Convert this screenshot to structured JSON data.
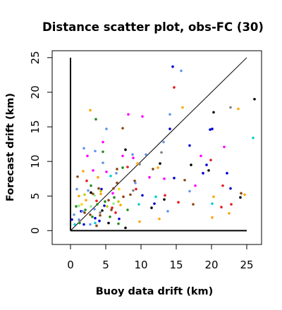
{
  "chart_data": {
    "type": "scatter",
    "title": "Distance scatter plot, obs-FC (30)",
    "xlabel": "Buoy data drift (km)",
    "ylabel": "Forecast drift (km)",
    "xlim": [
      -2.6,
      27.1
    ],
    "ylim": [
      -2.0,
      26.0
    ],
    "xticks": [
      0,
      5,
      10,
      15,
      20,
      25
    ],
    "yticks": [
      0,
      5,
      10,
      15,
      20,
      25
    ],
    "grid": false,
    "legend": "none",
    "reference_lines": [
      {
        "type": "identity",
        "from": [
          0,
          0
        ],
        "to": [
          25,
          25
        ],
        "color": "#000000"
      },
      {
        "type": "y-axis-bar",
        "from": [
          0,
          0
        ],
        "to": [
          0,
          25
        ],
        "color": "#000000"
      },
      {
        "type": "x-axis-bar",
        "from": [
          0,
          0
        ],
        "to": [
          25,
          0
        ],
        "color": "#000000"
      }
    ],
    "series": [
      {
        "color": "#0000cd",
        "points": [
          [
            14.5,
            23.7
          ],
          [
            14.1,
            14.7
          ],
          [
            20.1,
            14.7
          ],
          [
            19.8,
            14.6
          ],
          [
            19.3,
            9.5
          ],
          [
            22.2,
            8.3
          ],
          [
            16.9,
            12.3
          ],
          [
            14.7,
            7.6
          ],
          [
            11.9,
            3.9
          ],
          [
            3.5,
            1.8
          ],
          [
            1.5,
            2.8
          ],
          [
            4.8,
            3.6
          ],
          [
            6.9,
            1.7
          ],
          [
            1.9,
            0.9
          ],
          [
            0.2,
            1.6
          ],
          [
            10.2,
            5.1
          ],
          [
            4.4,
            6.0
          ],
          [
            22.7,
            6.1
          ],
          [
            4.1,
            1.4
          ],
          [
            18.8,
            8.3
          ]
        ]
      },
      {
        "color": "#000000",
        "points": [
          [
            26.1,
            19.0
          ],
          [
            20.3,
            17.1
          ],
          [
            7.8,
            11.7
          ],
          [
            12.7,
            9.7
          ],
          [
            17.1,
            9.5
          ],
          [
            24.1,
            4.8
          ],
          [
            11.5,
            3.3
          ],
          [
            4.5,
            2.9
          ],
          [
            7.8,
            0.4
          ],
          [
            13.3,
            4.5
          ],
          [
            19.6,
            8.7
          ],
          [
            2.9,
            5.5
          ],
          [
            5.4,
            1.1
          ]
        ]
      },
      {
        "color": "#e41a1c",
        "points": [
          [
            14.7,
            20.7
          ],
          [
            13.4,
            5.1
          ],
          [
            21.6,
            6.5
          ],
          [
            21.4,
            3.4
          ],
          [
            2.3,
            7.2
          ],
          [
            3.7,
            4.3
          ],
          [
            6.4,
            2.6
          ],
          [
            19.9,
            10.2
          ],
          [
            9.3,
            6.0
          ],
          [
            22.8,
            3.8
          ],
          [
            5.9,
            3.3
          ],
          [
            8.1,
            9.2
          ],
          [
            15.3,
            4.1
          ]
        ]
      },
      {
        "color": "#ff00ff",
        "points": [
          [
            8.2,
            16.8
          ],
          [
            10.2,
            16.5
          ],
          [
            4.6,
            12.8
          ],
          [
            7.4,
            10.8
          ],
          [
            2.4,
            10.8
          ],
          [
            5.1,
            8.5
          ],
          [
            8.9,
            10.5
          ],
          [
            18.5,
            10.8
          ],
          [
            11.2,
            7.7
          ],
          [
            13.3,
            7.5
          ],
          [
            21.8,
            12.1
          ],
          [
            6.0,
            5.4
          ],
          [
            17.7,
            6.5
          ],
          [
            3.2,
            8.7
          ]
        ]
      },
      {
        "color": "#ffa500",
        "points": [
          [
            2.8,
            17.4
          ],
          [
            15.9,
            17.8
          ],
          [
            23.8,
            17.6
          ],
          [
            9.5,
            9.7
          ],
          [
            12.4,
            9.1
          ],
          [
            1.8,
            8.6
          ],
          [
            4.3,
            5.3
          ],
          [
            20.3,
            4.9
          ],
          [
            20.1,
            1.9
          ],
          [
            9.8,
            1.3
          ],
          [
            12.6,
            1.7
          ],
          [
            24.7,
            5.2
          ],
          [
            22.5,
            2.5
          ],
          [
            2.2,
            4.4
          ],
          [
            7.1,
            3.7
          ],
          [
            3.9,
            7.7
          ],
          [
            1.2,
            5.0
          ]
        ]
      },
      {
        "color": "#6495ed",
        "points": [
          [
            15.7,
            23.1
          ],
          [
            14.1,
            16.8
          ],
          [
            5.1,
            14.7
          ],
          [
            3.5,
            11.5
          ],
          [
            8.8,
            11.0
          ],
          [
            10.7,
            11.0
          ],
          [
            13.2,
            12.8
          ],
          [
            1.9,
            11.9
          ],
          [
            4.6,
            9.8
          ],
          [
            6.5,
            8.3
          ],
          [
            0.9,
            6.0
          ],
          [
            2.5,
            5.8
          ],
          [
            3.4,
            3.1
          ],
          [
            1.7,
            2.8
          ],
          [
            0.5,
            2.3
          ],
          [
            1.2,
            1.6
          ],
          [
            2.8,
            0.9
          ],
          [
            9.2,
            6.9
          ],
          [
            16.9,
            5.7
          ],
          [
            13.8,
            2.8
          ]
        ]
      },
      {
        "color": "#228b22",
        "points": [
          [
            3.6,
            16.1
          ],
          [
            4.6,
            11.4
          ],
          [
            7.4,
            9.1
          ],
          [
            2.9,
            6.5
          ],
          [
            3.8,
            3.8
          ],
          [
            2.1,
            3.0
          ],
          [
            5.6,
            2.0
          ],
          [
            1.3,
            1.1
          ],
          [
            6.2,
            4.8
          ],
          [
            4.9,
            4.2
          ],
          [
            8.1,
            3.0
          ],
          [
            3.1,
            2.0
          ],
          [
            0.8,
            3.5
          ],
          [
            6.8,
            1.0
          ]
        ]
      },
      {
        "color": "#8b4513",
        "points": [
          [
            7.4,
            14.8
          ],
          [
            11.7,
            8.9
          ],
          [
            6.6,
            6.9
          ],
          [
            9.1,
            7.2
          ],
          [
            4.0,
            6.1
          ],
          [
            6.1,
            6.1
          ],
          [
            3.2,
            5.3
          ],
          [
            5.4,
            4.4
          ],
          [
            2.8,
            2.3
          ],
          [
            4.2,
            2.2
          ],
          [
            1.0,
            7.8
          ],
          [
            6.6,
            8.9
          ],
          [
            8.5,
            5.2
          ],
          [
            16.2,
            7.3
          ],
          [
            17.4,
            3.8
          ],
          [
            24.2,
            5.4
          ],
          [
            2.0,
            2.6
          ],
          [
            5.8,
            3.0
          ],
          [
            7.5,
            4.9
          ],
          [
            3.7,
            0.7
          ]
        ]
      },
      {
        "color": "#00ced1",
        "points": [
          [
            25.9,
            13.4
          ],
          [
            20.1,
            3.9
          ],
          [
            5.7,
            7.9
          ],
          [
            3.5,
            1.1
          ],
          [
            0.6,
            0.9
          ],
          [
            9.7,
            3.8
          ],
          [
            12.1,
            4.9
          ]
        ]
      },
      {
        "color": "#c8c800",
        "points": [
          [
            4.3,
            5.7
          ],
          [
            5.2,
            3.5
          ],
          [
            2.0,
            5.2
          ],
          [
            6.8,
            4.2
          ]
        ]
      },
      {
        "color": "#808080",
        "points": [
          [
            22.7,
            17.8
          ],
          [
            12.9,
            11.3
          ],
          [
            9.8,
            9.6
          ],
          [
            4.2,
            2.6
          ],
          [
            8.9,
            5.8
          ],
          [
            1.3,
            1.4
          ]
        ]
      },
      {
        "color": "#90ee90",
        "points": [
          [
            1.2,
            3.6
          ],
          [
            2.9,
            3.5
          ],
          [
            6.1,
            3.9
          ],
          [
            3.4,
            5.1
          ]
        ]
      },
      {
        "color": "#ffd700",
        "points": [
          [
            1.6,
            3.8
          ],
          [
            6.9,
            6.0
          ]
        ]
      }
    ]
  }
}
